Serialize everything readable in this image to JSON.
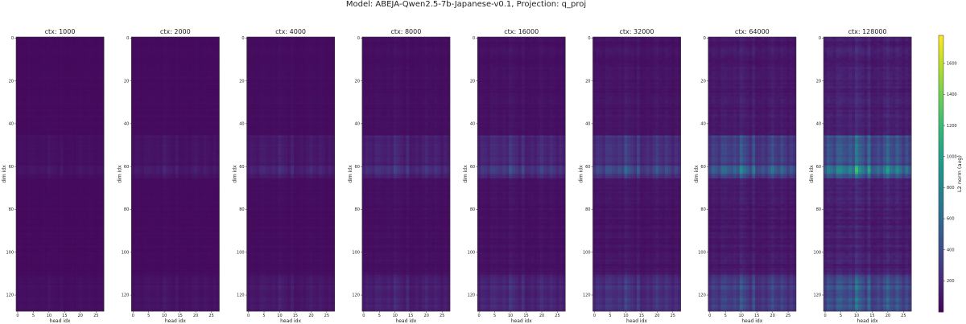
{
  "figure_title": "Model: ABEJA-Qwen2.5-7b-Japanese-v0.1, Projection: q_proj",
  "chart_data": {
    "type": "heatmap",
    "title": "Model: ABEJA-Qwen2.5-7b-Japanese-v0.1, Projection: q_proj",
    "xlabel": "head idx",
    "ylabel": "dim idx",
    "x_range": [
      0,
      27
    ],
    "y_range": [
      0,
      127
    ],
    "xticks": [
      "0",
      "5",
      "10",
      "15",
      "20",
      "25"
    ],
    "yticks": [
      "0",
      "20",
      "40",
      "60",
      "80",
      "100",
      "120"
    ],
    "colormap": "viridis",
    "colorbar": {
      "label": "L2 norm (avg)",
      "range": [
        0,
        1780
      ],
      "ticks": [
        "200",
        "400",
        "600",
        "800",
        "1000",
        "1200",
        "1400",
        "1600"
      ]
    },
    "panels": [
      {
        "title": "ctx: 1000",
        "intensity": 0.08
      },
      {
        "title": "ctx: 2000",
        "intensity": 0.12
      },
      {
        "title": "ctx: 4000",
        "intensity": 0.18
      },
      {
        "title": "ctx: 8000",
        "intensity": 0.26
      },
      {
        "title": "ctx: 16000",
        "intensity": 0.34
      },
      {
        "title": "ctx: 32000",
        "intensity": 0.46
      },
      {
        "title": "ctx: 64000",
        "intensity": 0.64
      },
      {
        "title": "ctx: 128000",
        "intensity": 0.9
      }
    ]
  }
}
